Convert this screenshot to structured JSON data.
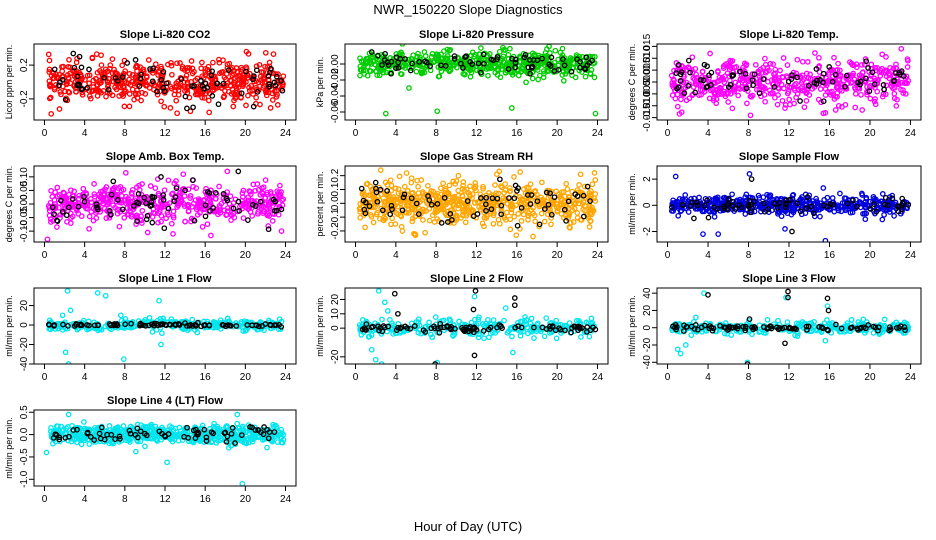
{
  "title": "NWR_150220  Slope Diagnostics",
  "xlabel": "Hour of Day (UTC)",
  "chart_data": [
    {
      "type": "scatter",
      "title": "Slope Li-820 CO2",
      "ylabel": "Licor ppm per min.",
      "color": "#ff0000",
      "xlim": [
        0,
        24
      ],
      "ylim": [
        -0.45,
        0.45
      ],
      "xticks": [
        0,
        4,
        8,
        12,
        16,
        20,
        24
      ],
      "yticks": [
        -0.2,
        0.2
      ],
      "ytick_labels": [
        "-0.2",
        "0.2"
      ],
      "series": [
        {
          "name": "",
          "color": "#ff0000",
          "n": 520,
          "spread": 0.12,
          "outliers": [
            [
              1.5,
              -0.32
            ],
            [
              5.2,
              0.33
            ],
            [
              13.2,
              -0.37
            ],
            [
              16.4,
              -0.36
            ],
            [
              20.1,
              0.36
            ],
            [
              22.8,
              0.33
            ]
          ]
        },
        {
          "name": "",
          "color": "#000000",
          "n": 70,
          "spread": 0.11,
          "outliers": [
            [
              3.5,
              0.3
            ],
            [
              14.8,
              -0.3
            ]
          ]
        }
      ]
    },
    {
      "type": "scatter",
      "title": "Slope Li-820 Pressure",
      "ylabel": "kPa per min.",
      "color": "#00cc00",
      "xlim": [
        0,
        24
      ],
      "ylim": [
        -0.07,
        0.025
      ],
      "xticks": [
        0,
        4,
        8,
        12,
        16,
        20,
        24
      ],
      "yticks": [
        -0.06,
        -0.04,
        -0.02,
        0
      ],
      "ytick_labels": [
        "-0.06",
        "-0.04",
        "-0.02",
        "0.00"
      ],
      "series": [
        {
          "name": "",
          "color": "#00cc00",
          "n": 520,
          "spread": 0.008,
          "outliers": [
            [
              3.0,
              -0.062
            ],
            [
              8.1,
              -0.059
            ],
            [
              15.5,
              -0.055
            ],
            [
              23.8,
              -0.062
            ],
            [
              5.3,
              -0.03
            ],
            [
              19.2,
              0.022
            ]
          ]
        },
        {
          "name": "",
          "color": "#000000",
          "n": 70,
          "spread": 0.006,
          "outliers": [
            [
              1.6,
              0.015
            ],
            [
              12.7,
              0.012
            ]
          ]
        }
      ]
    },
    {
      "type": "scatter",
      "title": "Slope Li-820 Temp.",
      "ylabel": "degrees C per min.",
      "color": "#ff00ff",
      "xlim": [
        0,
        24
      ],
      "ylim": [
        -0.016,
        0.016
      ],
      "xticks": [
        0,
        4,
        8,
        12,
        16,
        20,
        24
      ],
      "yticks": [
        -0.015,
        -0.01,
        -0.005,
        0,
        0.005,
        0.01,
        0.015
      ],
      "ytick_labels": [
        "-0.015",
        "-0.010",
        "-0.005",
        "0.000",
        "0.005",
        "0.010",
        "0.015"
      ],
      "series": [
        {
          "name": "",
          "color": "#ff00ff",
          "n": 520,
          "spread": 0.0045,
          "outliers": [
            [
              4.2,
              0.012
            ],
            [
              8.2,
              -0.014
            ],
            [
              15.6,
              -0.013
            ],
            [
              23.1,
              0.014
            ],
            [
              11.6,
              -0.011
            ]
          ]
        },
        {
          "name": "",
          "color": "#000000",
          "n": 70,
          "spread": 0.004,
          "outliers": [
            [
              2.1,
              0.009
            ],
            [
              13.1,
              -0.008
            ]
          ]
        }
      ]
    },
    {
      "type": "scatter",
      "title": "Slope Amb. Box Temp.",
      "ylabel": "degrees C per min.",
      "color": "#ff00ff",
      "xlim": [
        0,
        24
      ],
      "ylim": [
        -0.14,
        0.14
      ],
      "xticks": [
        0,
        4,
        8,
        12,
        16,
        20,
        24
      ],
      "yticks": [
        -0.1,
        -0.05,
        0,
        0.05,
        0.1
      ],
      "ytick_labels": [
        "-0.10",
        "-0.05",
        "0.00",
        "0.05",
        "0.10"
      ],
      "series": [
        {
          "name": "",
          "color": "#ff00ff",
          "n": 520,
          "spread": 0.035,
          "outliers": [
            [
              0.3,
              -0.13
            ],
            [
              8.1,
              0.115
            ],
            [
              12.8,
              -0.11
            ],
            [
              23.6,
              -0.1
            ],
            [
              18.2,
              0.12
            ]
          ]
        },
        {
          "name": "",
          "color": "#000000",
          "n": 70,
          "spread": 0.035,
          "outliers": [
            [
              19.3,
              0.12
            ],
            [
              11.6,
              0.1
            ]
          ]
        }
      ]
    },
    {
      "type": "scatter",
      "title": "Slope Gas Stream RH",
      "ylabel": "percent per min.",
      "color": "#ffa500",
      "xlim": [
        0,
        24
      ],
      "ylim": [
        -0.28,
        0.27
      ],
      "xticks": [
        0,
        4,
        8,
        12,
        16,
        20,
        24
      ],
      "yticks": [
        -0.2,
        -0.1,
        0,
        0.1,
        0.2
      ],
      "ytick_labels": [
        "-0.2",
        "-0.1",
        "0.0",
        "0.1",
        "0.2"
      ],
      "series": [
        {
          "name": "",
          "color": "#ffa500",
          "n": 620,
          "spread": 0.08,
          "outliers": [
            [
              2.5,
              0.24
            ],
            [
              5.8,
              -0.22
            ],
            [
              17.6,
              -0.24
            ],
            [
              23.7,
              0.22
            ],
            [
              10.2,
              0.2
            ]
          ]
        },
        {
          "name": "",
          "color": "#000000",
          "n": 70,
          "spread": 0.07,
          "outliers": [
            [
              2.0,
              0.15
            ]
          ]
        }
      ]
    },
    {
      "type": "scatter",
      "title": "Slope Sample Flow",
      "ylabel": "ml/min per min.",
      "color": "#0000dd",
      "xlim": [
        0,
        24
      ],
      "ylim": [
        -2.8,
        3.0
      ],
      "xticks": [
        0,
        4,
        8,
        12,
        16,
        20,
        24
      ],
      "yticks": [
        -2,
        0,
        2
      ],
      "ytick_labels": [
        "-2",
        "0",
        "2"
      ],
      "series": [
        {
          "name": "",
          "color": "#0000dd",
          "n": 520,
          "spread": 0.35,
          "outliers": [
            [
              3.5,
              -2.2
            ],
            [
              5.0,
              -2.2
            ],
            [
              15.6,
              -2.7
            ],
            [
              8.1,
              2.4
            ],
            [
              11.6,
              -1.8
            ],
            [
              0.8,
              2.2
            ],
            [
              19.2,
              0.9
            ]
          ]
        },
        {
          "name": "",
          "color": "#000000",
          "n": 70,
          "spread": 0.3,
          "outliers": [
            [
              12.3,
              -2.0
            ],
            [
              2.6,
              -1.0
            ],
            [
              8.3,
              2.0
            ]
          ]
        }
      ]
    },
    {
      "type": "scatter",
      "title": "Slope Line 1 Flow",
      "ylabel": "ml/min per min.",
      "color": "#00e5ee",
      "xlim": [
        0,
        24
      ],
      "ylim": [
        -40,
        38
      ],
      "xticks": [
        0,
        4,
        8,
        12,
        16,
        20,
        24
      ],
      "yticks": [
        -40,
        -20,
        0,
        20
      ],
      "ytick_labels": [
        "-40",
        "-20",
        "0",
        "20"
      ],
      "series": [
        {
          "name": "",
          "color": "#00e5ee",
          "n": 300,
          "spread": 3,
          "outliers": [
            [
              2.3,
              35
            ],
            [
              2.1,
              -28
            ],
            [
              2.4,
              -40
            ],
            [
              6.1,
              30
            ],
            [
              5.3,
              33
            ],
            [
              7.9,
              -35
            ],
            [
              11.4,
              25
            ],
            [
              11.6,
              -20
            ],
            [
              2.6,
              15
            ],
            [
              1.8,
              10
            ]
          ]
        },
        {
          "name": "",
          "color": "#000000",
          "n": 90,
          "spread": 0.8,
          "outliers": []
        }
      ]
    },
    {
      "type": "scatter",
      "title": "Slope Line 2 Flow",
      "ylabel": "ml/min per min.",
      "color": "#00e5ee",
      "xlim": [
        0,
        24
      ],
      "ylim": [
        -25,
        28
      ],
      "xticks": [
        0,
        4,
        8,
        12,
        16,
        20,
        24
      ],
      "yticks": [
        -20,
        0,
        10,
        20
      ],
      "ytick_labels": [
        "-20",
        "0",
        "10",
        "20"
      ],
      "series": [
        {
          "name": "",
          "color": "#00e5ee",
          "n": 300,
          "spread": 3,
          "outliers": [
            [
              2.3,
              26
            ],
            [
              2.0,
              -22
            ],
            [
              2.6,
              -25
            ],
            [
              1.6,
              -15
            ],
            [
              3.2,
              12
            ],
            [
              8.1,
              -24
            ],
            [
              11.8,
              22
            ],
            [
              14.9,
              14
            ],
            [
              15.6,
              -17
            ],
            [
              2.9,
              18
            ]
          ]
        },
        {
          "name": "",
          "color": "#000000",
          "n": 90,
          "spread": 1.2,
          "outliers": [
            [
              3.9,
              24
            ],
            [
              7.9,
              -25
            ],
            [
              11.9,
              26
            ],
            [
              11.8,
              -19
            ],
            [
              15.8,
              21
            ],
            [
              15.8,
              16
            ],
            [
              4.2,
              10
            ],
            [
              11.7,
              13
            ]
          ]
        }
      ]
    },
    {
      "type": "scatter",
      "title": "Slope Line 3 Flow",
      "ylabel": "ml/min per min.",
      "color": "#00e5ee",
      "xlim": [
        0,
        24
      ],
      "ylim": [
        -42,
        46
      ],
      "xticks": [
        0,
        4,
        8,
        12,
        16,
        20,
        24
      ],
      "yticks": [
        -40,
        -20,
        0,
        20,
        40
      ],
      "ytick_labels": [
        "-40",
        "-20",
        "0",
        "20",
        "40"
      ],
      "series": [
        {
          "name": "",
          "color": "#00e5ee",
          "n": 300,
          "spread": 3.5,
          "outliers": [
            [
              1.3,
              -30
            ],
            [
              1.0,
              -25
            ],
            [
              1.8,
              -20
            ],
            [
              3.6,
              40
            ],
            [
              7.9,
              -40
            ],
            [
              11.7,
              35
            ],
            [
              15.8,
              25
            ],
            [
              15.6,
              -15
            ],
            [
              2.8,
              12
            ]
          ]
        },
        {
          "name": "",
          "color": "#000000",
          "n": 90,
          "spread": 1.5,
          "outliers": [
            [
              4.0,
              38
            ],
            [
              7.9,
              -42
            ],
            [
              11.9,
              42
            ],
            [
              11.9,
              35
            ],
            [
              11.6,
              -18
            ],
            [
              15.8,
              34
            ],
            [
              15.9,
              20
            ],
            [
              8.1,
              10
            ]
          ]
        }
      ]
    },
    {
      "type": "scatter",
      "title": "Slope Line 4 (LT) Flow",
      "ylabel": "ml/min per min.",
      "color": "#00e5ee",
      "xlim": [
        0,
        24
      ],
      "ylim": [
        -1.15,
        0.55
      ],
      "xticks": [
        0,
        4,
        8,
        12,
        16,
        20,
        24
      ],
      "yticks": [
        -1,
        -0.5,
        0,
        0.5
      ],
      "ytick_labels": [
        "-1.0",
        "-0.5",
        "0.0",
        "0.5"
      ],
      "series": [
        {
          "name": "",
          "color": "#00e5ee",
          "n": 600,
          "spread": 0.1,
          "outliers": [
            [
              19.7,
              -1.1
            ],
            [
              12.2,
              -0.62
            ],
            [
              2.4,
              0.45
            ],
            [
              19.2,
              0.45
            ],
            [
              0.2,
              -0.4
            ],
            [
              9.1,
              -0.38
            ]
          ]
        },
        {
          "name": "",
          "color": "#000000",
          "n": 70,
          "spread": 0.08,
          "outliers": []
        }
      ]
    }
  ]
}
